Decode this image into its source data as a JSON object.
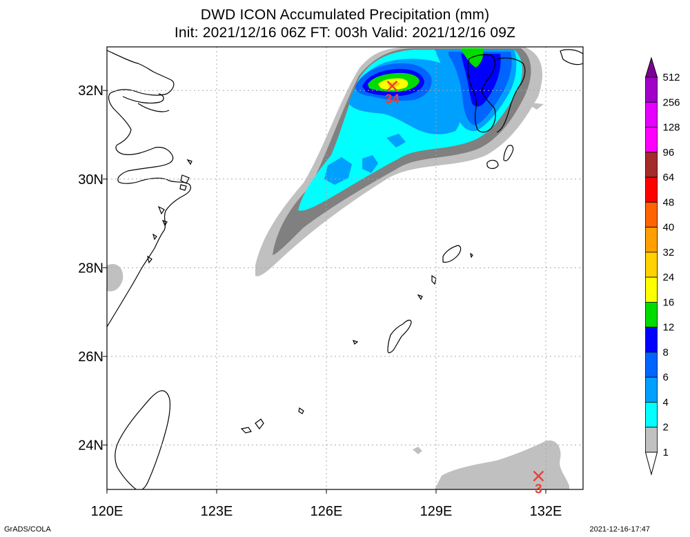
{
  "header": {
    "title_line1": "DWD ICON Accumulated Precipitation (mm)",
    "title_line2": "Init: 2021/12/16 06Z  FT: 003h  Valid: 2021/12/16 09Z"
  },
  "map": {
    "lon_labels": [
      "120E",
      "123E",
      "126E",
      "129E",
      "132E"
    ],
    "lat_labels": [
      "32N",
      "30N",
      "28N",
      "26N",
      "24N"
    ],
    "markers": [
      {
        "type": "maximum",
        "label": "34",
        "lon": 127.8,
        "lat": 32.1
      },
      {
        "type": "minimum",
        "label": "3",
        "lon": 131.8,
        "lat": 23.3
      }
    ]
  },
  "colorbar": {
    "labels": [
      "512",
      "256",
      "128",
      "96",
      "64",
      "48",
      "40",
      "32",
      "24",
      "16",
      "12",
      "8",
      "6",
      "4",
      "2",
      "1"
    ],
    "colors": [
      "#7d0096",
      "#a000c8",
      "#e600ff",
      "#ff00ff",
      "#a52a2a",
      "#ff0000",
      "#ff6400",
      "#ffa000",
      "#ffd200",
      "#ffff00",
      "#00dc00",
      "#0000ff",
      "#0064ff",
      "#00a0ff",
      "#00ffff",
      "#808080",
      "#c0c0c0"
    ]
  },
  "footer": {
    "left": "GrADS/COLA",
    "right": "2021-12-16-17:47"
  }
}
